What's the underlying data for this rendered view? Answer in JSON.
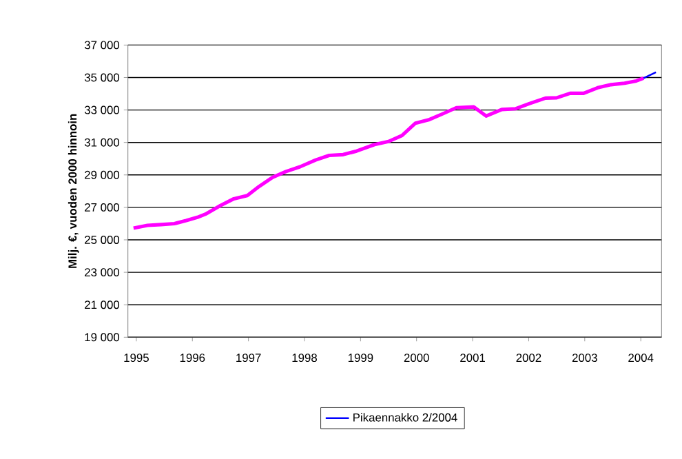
{
  "chart_data": {
    "type": "line",
    "ylabel": "Milj. €, vuoden 2000 hinnoin",
    "xlim": [
      1994.85,
      2004.37
    ],
    "xticks": [
      1995,
      1996,
      1997,
      1998,
      1999,
      2000,
      2001,
      2002,
      2003,
      2004
    ],
    "ylim": [
      19000,
      37000
    ],
    "yticks": [
      {
        "value": 19000,
        "label": "19 000"
      },
      {
        "value": 21000,
        "label": "21 000"
      },
      {
        "value": 23000,
        "label": "23 000"
      },
      {
        "value": 25000,
        "label": "25 000"
      },
      {
        "value": 27000,
        "label": "27 000"
      },
      {
        "value": 29000,
        "label": "29 000"
      },
      {
        "value": 31000,
        "label": "31 000"
      },
      {
        "value": 33000,
        "label": "33 000"
      },
      {
        "value": 35000,
        "label": "35 000"
      },
      {
        "value": 37000,
        "label": "37 000"
      }
    ],
    "grid": "y",
    "legend": "bottom",
    "marker": "none",
    "line_style": "solid",
    "series": [
      {
        "color": "#ff00ff",
        "x": [
          1994.95,
          1995.2,
          1995.44,
          1995.68,
          1995.89,
          1996.09,
          1996.25,
          1996.5,
          1996.74,
          1996.98,
          1997.19,
          1997.43,
          1997.67,
          1997.92,
          1998.2,
          1998.44,
          1998.69,
          1998.93,
          1999.25,
          1999.5,
          1999.74,
          1999.98,
          2000.23,
          2000.47,
          2000.71,
          2001.02,
          2001.24,
          2001.52,
          2001.77,
          2002.01,
          2002.3,
          2002.5,
          2002.74,
          2002.98,
          2003.23,
          2003.47,
          2003.71,
          2003.92,
          2004.05
        ],
        "values": [
          25720,
          25890,
          25940,
          26000,
          26190,
          26390,
          26610,
          27110,
          27530,
          27730,
          28290,
          28850,
          29210,
          29500,
          29920,
          30200,
          30250,
          30470,
          30870,
          31060,
          31430,
          32190,
          32410,
          32770,
          33140,
          33190,
          32630,
          33030,
          33080,
          33390,
          33730,
          33750,
          34030,
          34030,
          34370,
          34560,
          34650,
          34790,
          34960
        ]
      },
      {
        "name": "Pikaennakko 2/2004",
        "color": "#0000ff",
        "x": [
          2004.05,
          2004.27
        ],
        "values": [
          34960,
          35320
        ]
      }
    ]
  }
}
